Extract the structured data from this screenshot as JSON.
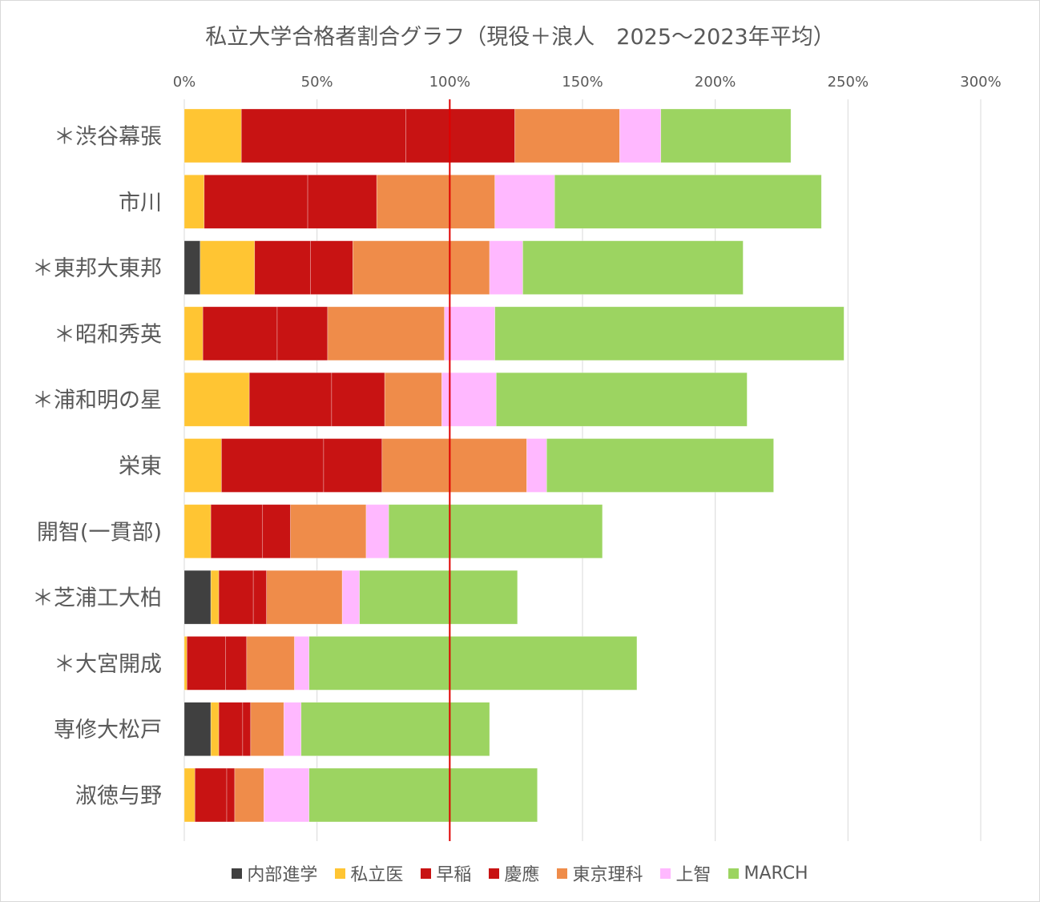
{
  "chart_data": {
    "type": "bar",
    "orientation": "horizontal",
    "stacked": true,
    "title": "私立大学合格者割合グラフ（現役＋浪人　2025～2023年平均）",
    "xlim": [
      0,
      300
    ],
    "x_ticks": [
      "0%",
      "50%",
      "100%",
      "150%",
      "200%",
      "250%",
      "300%"
    ],
    "x_tick_values": [
      0,
      50,
      100,
      150,
      200,
      250,
      300
    ],
    "reference_line": 100,
    "reference_line_color": "#e00000",
    "grid": true,
    "legend_position": "bottom",
    "categories": [
      "＊渋谷幕張",
      "市川",
      "＊東邦大東邦",
      "＊昭和秀英",
      "＊浦和明の星",
      "栄東",
      "開智(一貫部)",
      "＊芝浦工大柏",
      "＊大宮開成",
      "専修大松戸",
      "淑徳与野"
    ],
    "series": [
      {
        "name": "内部進学",
        "color": "#404040",
        "values": [
          0,
          0,
          6,
          0,
          0,
          0,
          0,
          10,
          0,
          10,
          0
        ]
      },
      {
        "name": "私立医",
        "color": "#ffc533",
        "values": [
          21.5,
          7.5,
          20.5,
          7,
          24.5,
          14,
          10,
          3,
          1,
          3,
          4
        ]
      },
      {
        "name": "早稲",
        "color": "#c81313",
        "values": [
          62,
          39,
          21,
          28,
          31,
          38.5,
          19.5,
          13,
          14.5,
          9,
          12
        ]
      },
      {
        "name": "慶應",
        "color": "#c81313",
        "values": [
          41,
          26,
          16,
          19,
          20,
          22,
          10.5,
          5,
          8,
          3,
          3
        ]
      },
      {
        "name": "東京理科",
        "color": "#ef8c4a",
        "values": [
          39.5,
          44.5,
          51.5,
          44,
          21.5,
          54.5,
          28.5,
          28.5,
          18,
          12.5,
          11
        ]
      },
      {
        "name": "上智",
        "color": "#ffb8ff",
        "values": [
          15.5,
          22.5,
          12.5,
          19,
          20.5,
          7.5,
          8.5,
          6.5,
          5.5,
          6.5,
          17
        ]
      },
      {
        "name": "MARCH",
        "color": "#9cd461",
        "values": [
          49,
          100.5,
          83,
          131.5,
          94.5,
          85.5,
          80.5,
          59.5,
          123.5,
          71,
          86
        ]
      }
    ]
  }
}
